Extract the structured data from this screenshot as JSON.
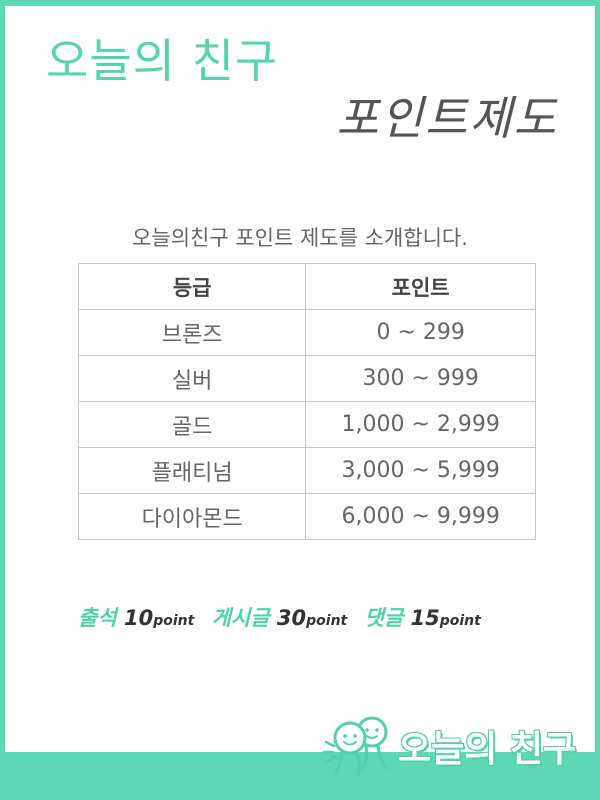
{
  "header": {
    "title": "오늘의 친구",
    "subtitle": "포인트제도"
  },
  "intro": "오늘의친구 포인트 제도를 소개합니다.",
  "table": {
    "headers": [
      "등급",
      "포인트"
    ],
    "rows": [
      {
        "grade": "브론즈",
        "points": "0 ~ 299"
      },
      {
        "grade": "실버",
        "points": "300 ~ 999"
      },
      {
        "grade": "골드",
        "points": "1,000 ~ 2,999"
      },
      {
        "grade": "플래티넘",
        "points": "3,000 ~ 5,999"
      },
      {
        "grade": "다이아몬드",
        "points": "6,000 ~ 9,999"
      }
    ]
  },
  "rules": [
    {
      "name": "출석",
      "value": "10",
      "unit": "point"
    },
    {
      "name": "게시글",
      "value": "30",
      "unit": "point"
    },
    {
      "name": "댓글",
      "value": "15",
      "unit": "point"
    }
  ],
  "logo": {
    "text": "오늘의 친구",
    "icon": "two-smiling-friends-icon"
  },
  "colors": {
    "accent": "#5ed8b4",
    "title": "#56d4b0",
    "subtitle": "#555555",
    "text": "#666666"
  }
}
